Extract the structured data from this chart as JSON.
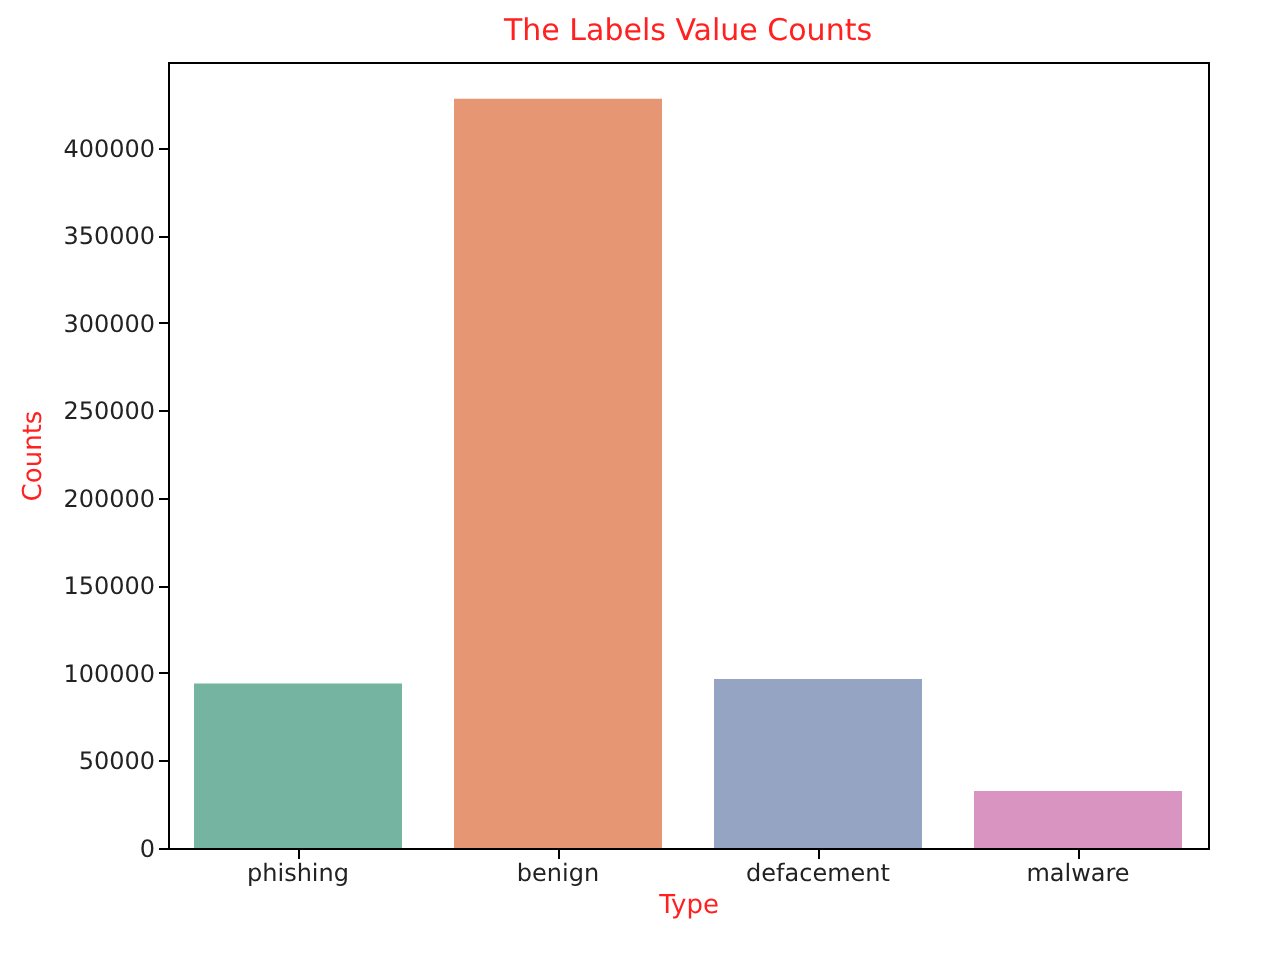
{
  "chart_data": {
    "type": "bar",
    "title": "The Labels Value Counts",
    "xlabel": "Type",
    "ylabel": "Counts",
    "categories": [
      "phishing",
      "benign",
      "defacement",
      "malware"
    ],
    "values": [
      94000,
      428000,
      96500,
      32500
    ],
    "colors": [
      "#75b4a0",
      "#e69673",
      "#95a4c3",
      "#d994c2"
    ],
    "ylim": [
      0,
      449000
    ],
    "yticks": [
      0,
      50000,
      100000,
      150000,
      200000,
      250000,
      300000,
      350000,
      400000
    ],
    "grid": false
  }
}
